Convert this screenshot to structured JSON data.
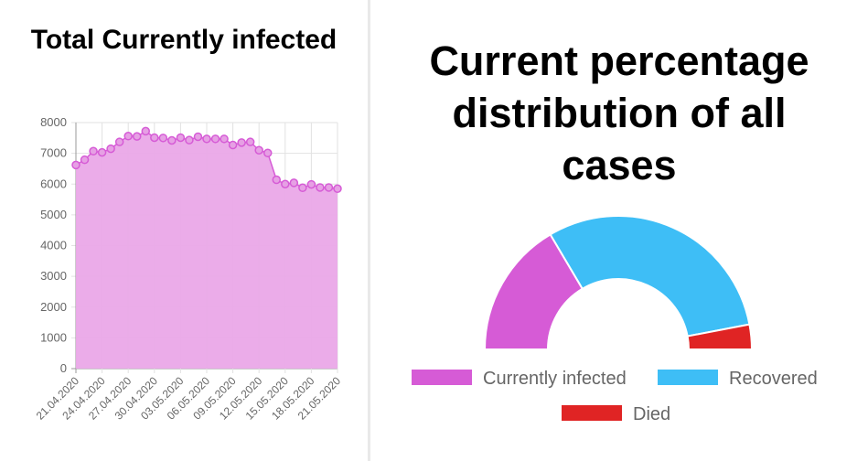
{
  "chart_data": [
    {
      "type": "area",
      "title": "Total Currently infected",
      "ylim": [
        0,
        8000
      ],
      "yticks": [
        "0",
        "1000",
        "2000",
        "3000",
        "4000",
        "5000",
        "6000",
        "7000",
        "8000"
      ],
      "x": [
        "21.04.2020",
        "22.04.2020",
        "23.04.2020",
        "24.04.2020",
        "25.04.2020",
        "26.04.2020",
        "27.04.2020",
        "28.04.2020",
        "29.04.2020",
        "30.04.2020",
        "01.05.2020",
        "02.05.2020",
        "03.05.2020",
        "04.05.2020",
        "05.05.2020",
        "06.05.2020",
        "07.05.2020",
        "08.05.2020",
        "09.05.2020",
        "10.05.2020",
        "11.05.2020",
        "12.05.2020",
        "13.05.2020",
        "14.05.2020",
        "15.05.2020",
        "16.05.2020",
        "17.05.2020",
        "18.05.2020",
        "19.05.2020",
        "20.05.2020",
        "21.05.2020"
      ],
      "xtick_labels": [
        "21.04.2020",
        "24.04.2020",
        "27.04.2020",
        "30.04.2020",
        "03.05.2020",
        "06.05.2020",
        "09.05.2020",
        "12.05.2020",
        "15.05.2020",
        "18.05.2020",
        "21.05.2020"
      ],
      "values": [
        6620,
        6790,
        7070,
        7030,
        7150,
        7370,
        7560,
        7550,
        7720,
        7510,
        7500,
        7420,
        7510,
        7430,
        7540,
        7470,
        7470,
        7470,
        7270,
        7350,
        7370,
        7100,
        7010,
        6140,
        6000,
        6040,
        5880,
        5990,
        5890,
        5890,
        5850
      ],
      "color": "#d65bd6",
      "fill": "#eaa8e8",
      "grid": true
    },
    {
      "type": "pie",
      "subtype": "half-doughnut",
      "title": "Current percentage distribution of all cases",
      "title_lines": [
        "Current percentage",
        "distribution of all",
        "cases"
      ],
      "labels": [
        "Currently infected",
        "Recovered",
        "Died"
      ],
      "values": [
        33,
        61,
        6
      ],
      "colors": [
        "#d65bd6",
        "#3ebef6",
        "#e02424"
      ],
      "legend": "bottom"
    }
  ]
}
